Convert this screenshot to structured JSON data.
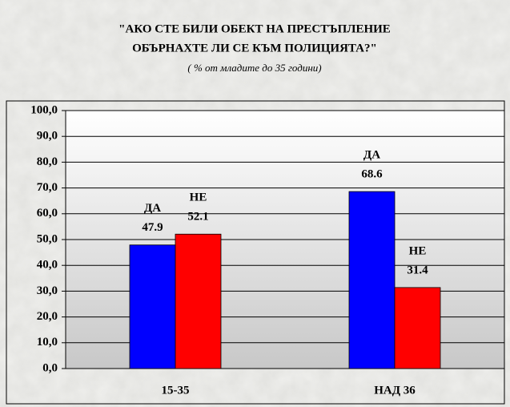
{
  "chart_data": {
    "type": "bar",
    "title": "\"АКО СТЕ БИЛИ ОБЕКТ НА ПРЕСТЪПЛЕНИЕ",
    "title_line2": "ОБЪРНАХТЕ ЛИ СЕ КЪМ ПОЛИЦИЯТА?\"",
    "subtitle": "( % от младите до 35 години)",
    "categories": [
      "15-35",
      "НАД 36"
    ],
    "series": [
      {
        "name": "ДА",
        "color": "#0000ff",
        "values": [
          47.9,
          68.6
        ]
      },
      {
        "name": "НЕ",
        "color": "#ff0000",
        "values": [
          52.1,
          31.4
        ]
      }
    ],
    "ylim": [
      0,
      100
    ],
    "yticks": [
      {
        "value": 0,
        "label": "0,0"
      },
      {
        "value": 10,
        "label": "10,0"
      },
      {
        "value": 20,
        "label": "20,0"
      },
      {
        "value": 30,
        "label": "30,0"
      },
      {
        "value": 40,
        "label": "40,0"
      },
      {
        "value": 50,
        "label": "50,0"
      },
      {
        "value": 60,
        "label": "60,0"
      },
      {
        "value": 70,
        "label": "70,0"
      },
      {
        "value": 80,
        "label": "80,0"
      },
      {
        "value": 90,
        "label": "90,0"
      },
      {
        "value": 100,
        "label": "100,0"
      }
    ],
    "grid": true
  }
}
